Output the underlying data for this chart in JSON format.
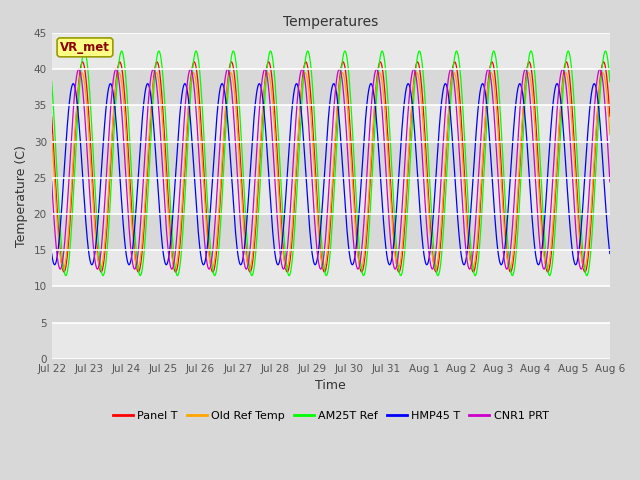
{
  "title": "Temperatures",
  "xlabel": "Time",
  "ylabel": "Temperature (C)",
  "annotation": "VR_met",
  "ylim": [
    0,
    45
  ],
  "yticks": [
    0,
    5,
    10,
    15,
    20,
    25,
    30,
    35,
    40,
    45
  ],
  "date_labels": [
    "Jul 22",
    "Jul 23",
    "Jul 24",
    "Jul 25",
    "Jul 26",
    "Jul 27",
    "Jul 28",
    "Jul 29",
    "Jul 30",
    "Jul 31",
    "Aug 1",
    "Aug 2",
    "Aug 3",
    "Aug 4",
    "Aug 5",
    "Aug 6"
  ],
  "series": [
    {
      "label": "Panel T",
      "color": "#ff0000",
      "phase": 0.0,
      "amp": 14.5,
      "mid": 26.5,
      "phase_shift": 0.0
    },
    {
      "label": "Old Ref Temp",
      "color": "#ffa500",
      "phase": 0.0,
      "amp": 13.5,
      "mid": 26.0,
      "phase_shift": 0.02
    },
    {
      "label": "AM25T Ref",
      "color": "#00ff00",
      "phase": 0.0,
      "amp": 15.5,
      "mid": 27.0,
      "phase_shift": -0.05
    },
    {
      "label": "HMP45 T",
      "color": "#0000ff",
      "phase": 0.0,
      "amp": 12.5,
      "mid": 25.5,
      "phase_shift": 0.25
    },
    {
      "label": "CNR1 PRT",
      "color": "#cc00cc",
      "phase": 0.0,
      "amp": 13.8,
      "mid": 26.2,
      "phase_shift": 0.1
    }
  ],
  "bg_color": "#d8d8d8",
  "plot_bg_color": "#e8e8e8",
  "grid_color": "#ffffff",
  "n_days": 15,
  "samples_per_day": 144,
  "peak_time": 0.58,
  "start_day": 0
}
